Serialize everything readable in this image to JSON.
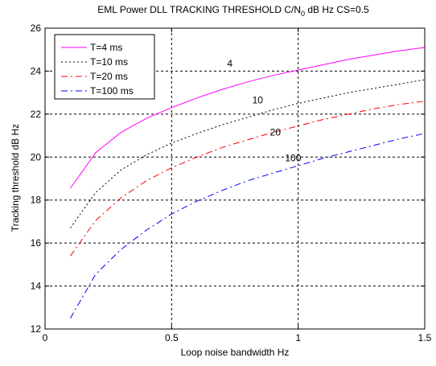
{
  "chart_data": {
    "type": "line",
    "title": "EML Power DLL TRACKING THRESHOLD C/N0 dB Hz  CS=0.5",
    "title_parts": {
      "pre": "EML Power DLL TRACKING THRESHOLD C/N",
      "sub": "0",
      "post": " dB Hz  CS=0.5"
    },
    "xlabel": "Loop noise bandwidth Hz",
    "ylabel": "Tracking threshold dB Hz",
    "xlim": [
      0,
      1.5
    ],
    "ylim": [
      12,
      26
    ],
    "xticks": [
      0,
      0.5,
      1,
      1.5
    ],
    "xtick_labels": [
      "0",
      "0.5",
      "1",
      "1.5"
    ],
    "yticks": [
      12,
      14,
      16,
      18,
      20,
      22,
      24,
      26
    ],
    "ytick_labels": [
      "12",
      "14",
      "16",
      "18",
      "20",
      "22",
      "24",
      "26"
    ],
    "grid": true,
    "legend_position": "top-left",
    "x": [
      0.1,
      0.2,
      0.3,
      0.4,
      0.5,
      0.6,
      0.7,
      0.8,
      0.9,
      1.0,
      1.1,
      1.2,
      1.3,
      1.4,
      1.5
    ],
    "series": [
      {
        "name": "T=4 ms",
        "color": "#ff00ff",
        "dash": "solid",
        "annotation": "4",
        "annotation_at": [
          0.73,
          24.2
        ],
        "values": [
          18.55,
          20.2,
          21.15,
          21.8,
          22.3,
          22.75,
          23.15,
          23.5,
          23.8,
          24.05,
          24.3,
          24.55,
          24.75,
          24.95,
          25.1
        ]
      },
      {
        "name": "T=10 ms",
        "color": "#000000",
        "dash": "dotted",
        "annotation": "10",
        "annotation_at": [
          0.84,
          22.5
        ],
        "values": [
          16.7,
          18.35,
          19.4,
          20.1,
          20.65,
          21.1,
          21.5,
          21.85,
          22.2,
          22.5,
          22.75,
          23.0,
          23.2,
          23.4,
          23.6
        ]
      },
      {
        "name": "T=20 ms",
        "color": "#ff0000",
        "dash": "dashdot",
        "annotation": "20",
        "annotation_at": [
          0.91,
          21.0
        ],
        "values": [
          15.4,
          17.05,
          18.1,
          18.9,
          19.5,
          20.0,
          20.45,
          20.8,
          21.15,
          21.45,
          21.75,
          22.0,
          22.25,
          22.45,
          22.6
        ]
      },
      {
        "name": "T=100 ms",
        "color": "#0000ff",
        "dash": "dashdot",
        "annotation": "100",
        "annotation_at": [
          0.98,
          19.8
        ],
        "values": [
          12.5,
          14.55,
          15.7,
          16.6,
          17.35,
          17.95,
          18.45,
          18.9,
          19.25,
          19.6,
          19.95,
          20.25,
          20.55,
          20.85,
          21.1
        ]
      }
    ]
  }
}
